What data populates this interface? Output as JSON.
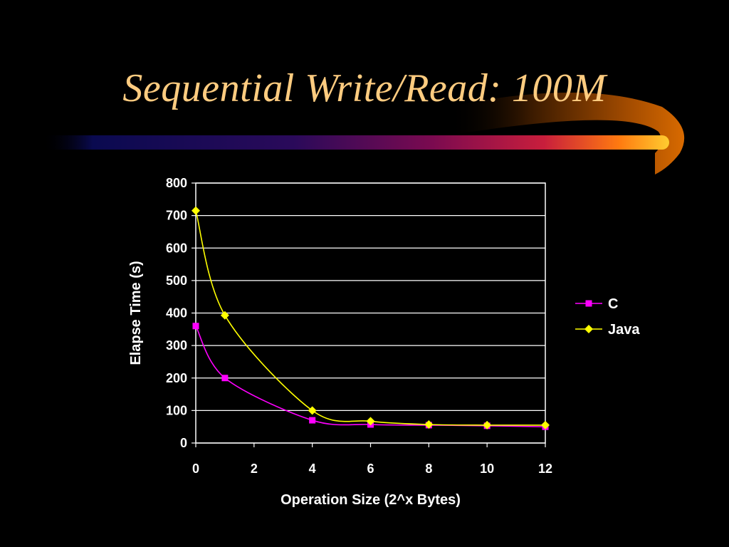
{
  "slide": {
    "title": "Sequential Write/Read: 100M",
    "title_color": "#FFCC80"
  },
  "chart_data": {
    "type": "line",
    "title": "",
    "xlabel": "Operation Size (2^x Bytes)",
    "ylabel": "Elapse Time (s)",
    "xlim": [
      0,
      12
    ],
    "ylim": [
      0,
      800
    ],
    "xticks": [
      0,
      2,
      4,
      6,
      8,
      10,
      12
    ],
    "yticks": [
      0,
      100,
      200,
      300,
      400,
      500,
      600,
      700,
      800
    ],
    "grid": "horizontal",
    "legend": "right",
    "series": [
      {
        "name": "C",
        "color": "#FF00FF",
        "marker": "square",
        "x": [
          0,
          1,
          4,
          6,
          8,
          10,
          12
        ],
        "y": [
          360,
          200,
          70,
          57,
          55,
          53,
          50
        ]
      },
      {
        "name": "Java",
        "color": "#FFFF00",
        "marker": "diamond",
        "x": [
          0,
          1,
          4,
          6,
          8,
          10,
          12
        ],
        "y": [
          715,
          393,
          100,
          67,
          57,
          55,
          55
        ]
      }
    ]
  }
}
